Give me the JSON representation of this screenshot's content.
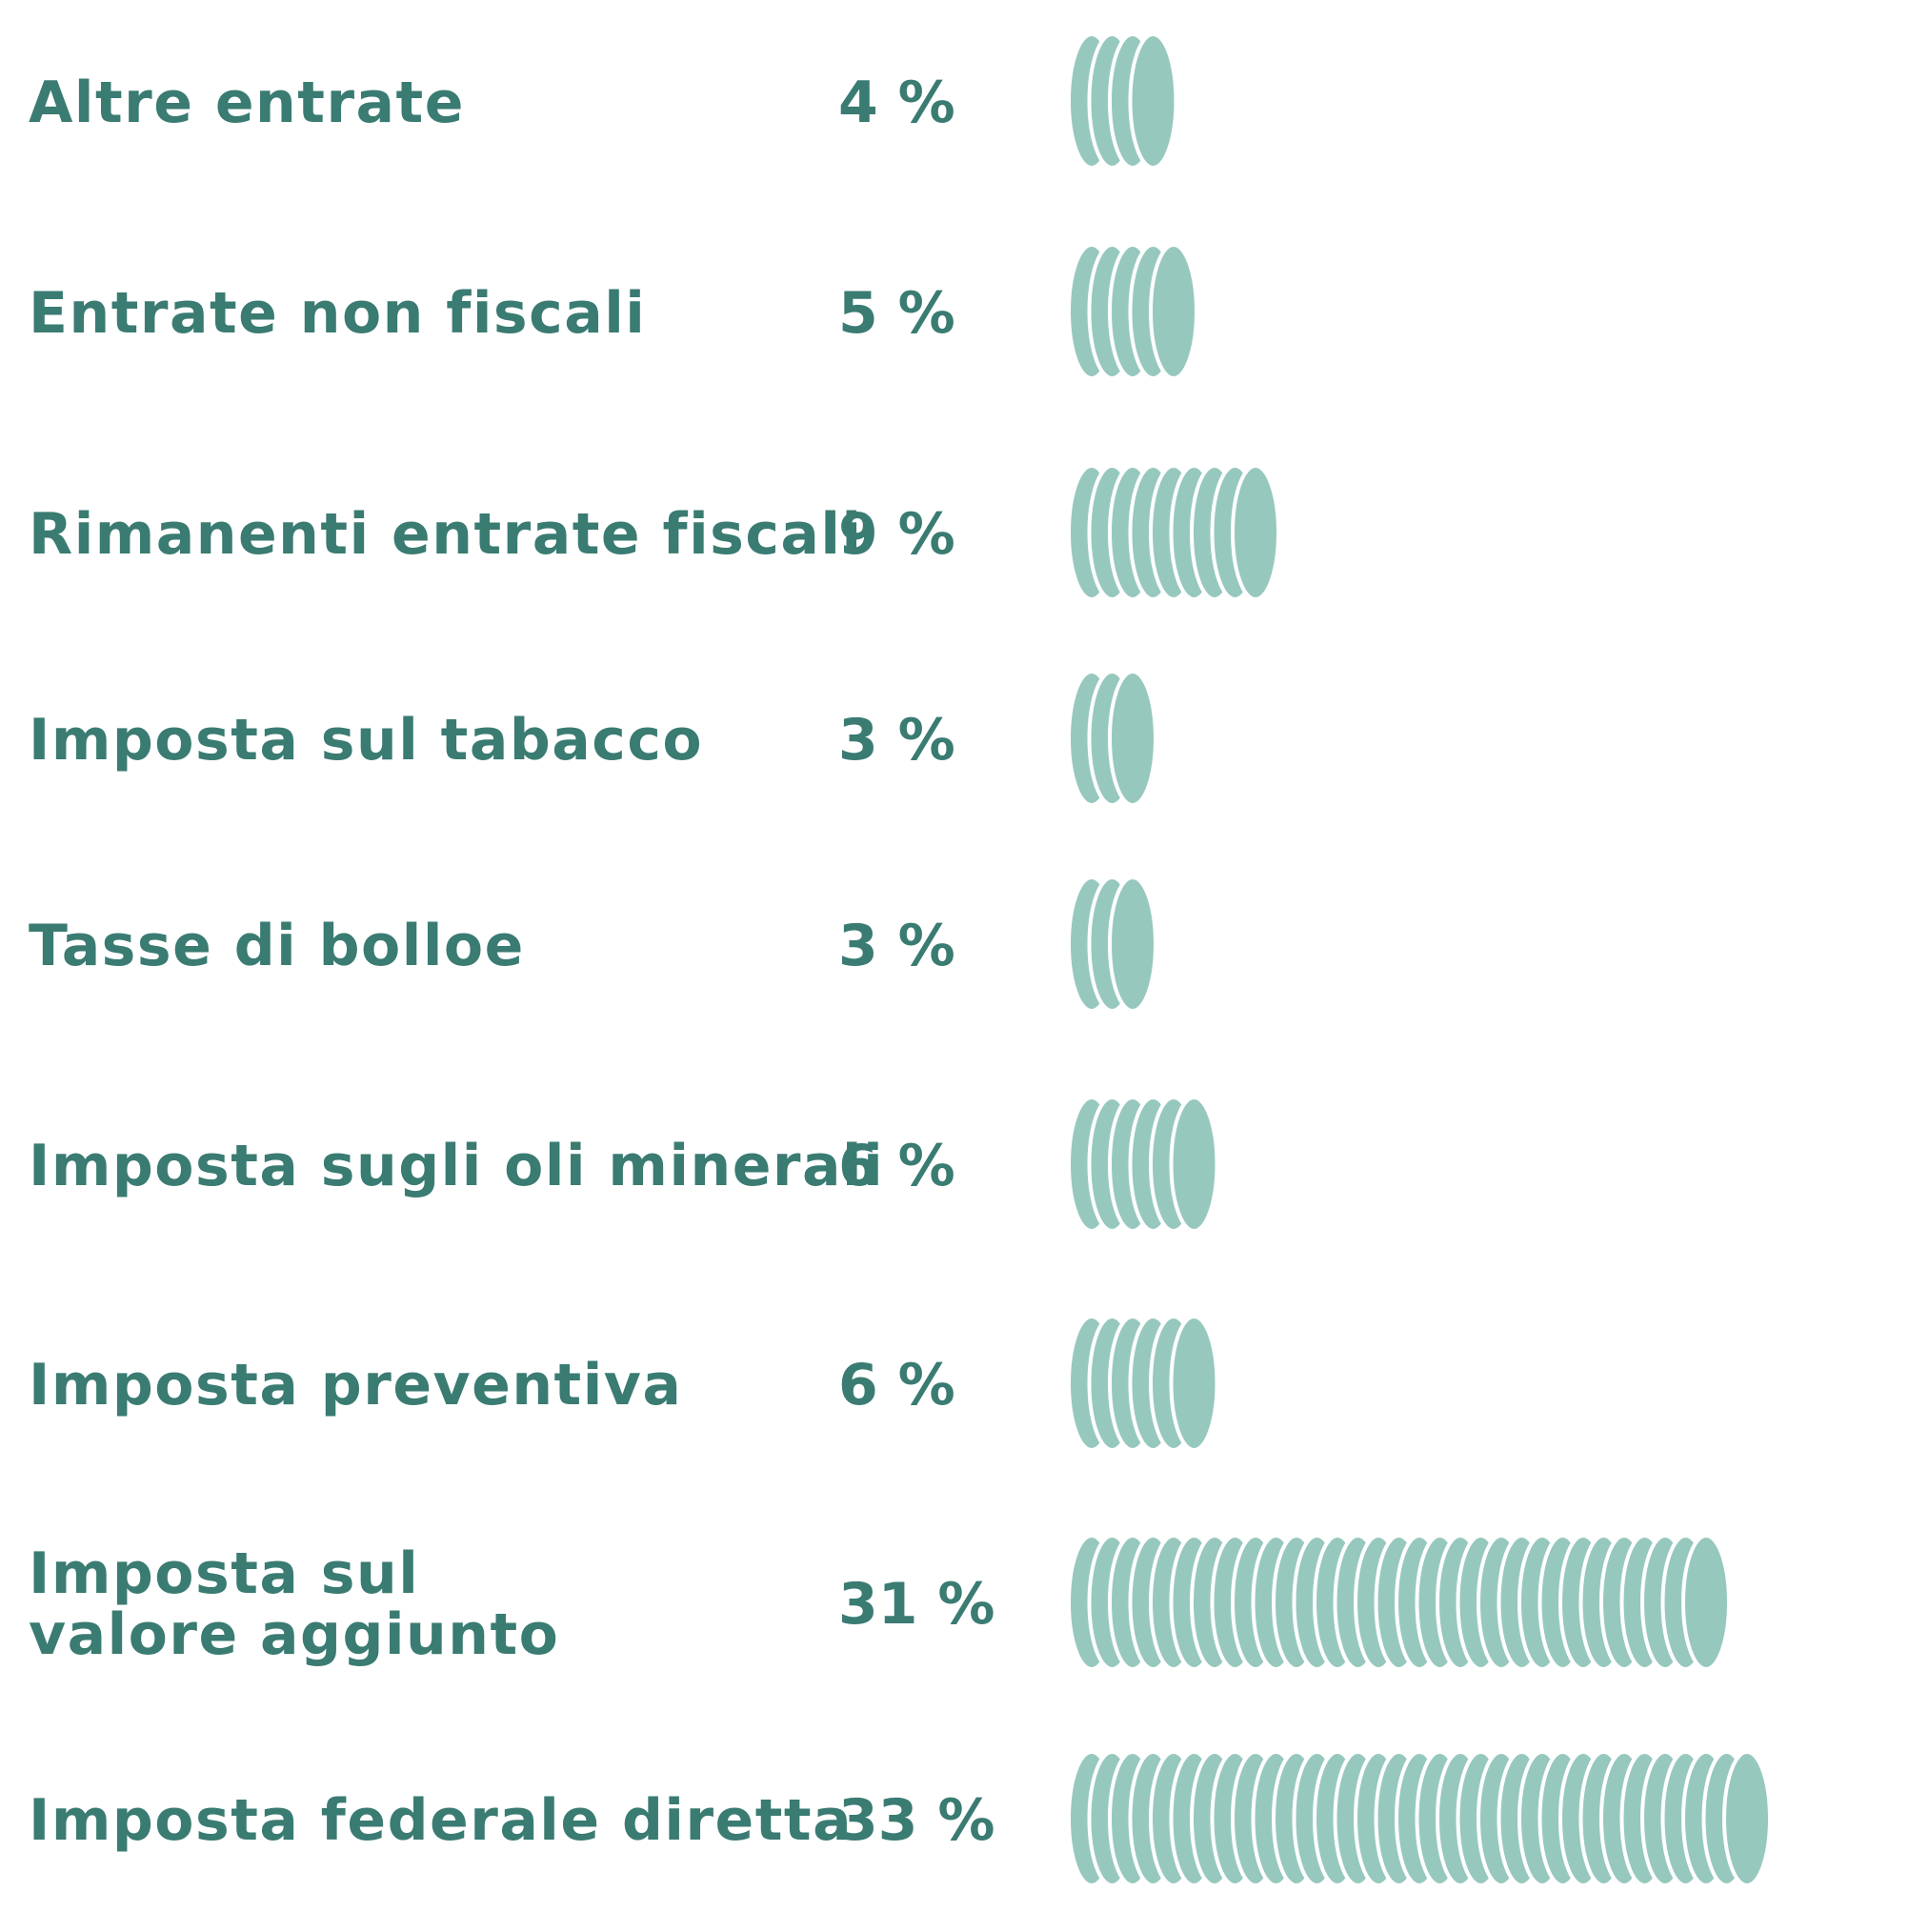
{
  "colors": {
    "text": "#3a7b72",
    "coin": "#97c8be",
    "coin_edge": "#ffffff"
  },
  "chart_data": {
    "type": "bar",
    "unit": "%",
    "categories": [
      "Altre entrate",
      "Entrate non fiscali",
      "Rimanenti entrate fiscali",
      "Imposta sul tabacco",
      "Tasse di bolloe",
      "Imposta sugli oli minerali",
      "Imposta preventiva",
      "Imposta sul valore aggiunto",
      "Imposta federale diretta"
    ],
    "values": [
      4,
      5,
      9,
      3,
      3,
      6,
      6,
      31,
      33
    ],
    "value_labels": [
      "4 %",
      "5 %",
      "9 %",
      "3 %",
      "3 %",
      "6 %",
      "6 %",
      "31 %",
      "33 %"
    ],
    "label_lines": [
      [
        "Altre entrate"
      ],
      [
        "Entrate non fiscali"
      ],
      [
        "Rimanenti entrate fiscali"
      ],
      [
        "Imposta sul tabacco"
      ],
      [
        "Tasse di bolloe"
      ],
      [
        "Imposta sugli oli minerali"
      ],
      [
        "Imposta preventiva"
      ],
      [
        "Imposta sul",
        "valore aggiunto"
      ],
      [
        "Imposta federale diretta"
      ]
    ],
    "mark": "stacked coins (one coin per percent)",
    "title": "",
    "xlabel": "",
    "ylabel": ""
  }
}
